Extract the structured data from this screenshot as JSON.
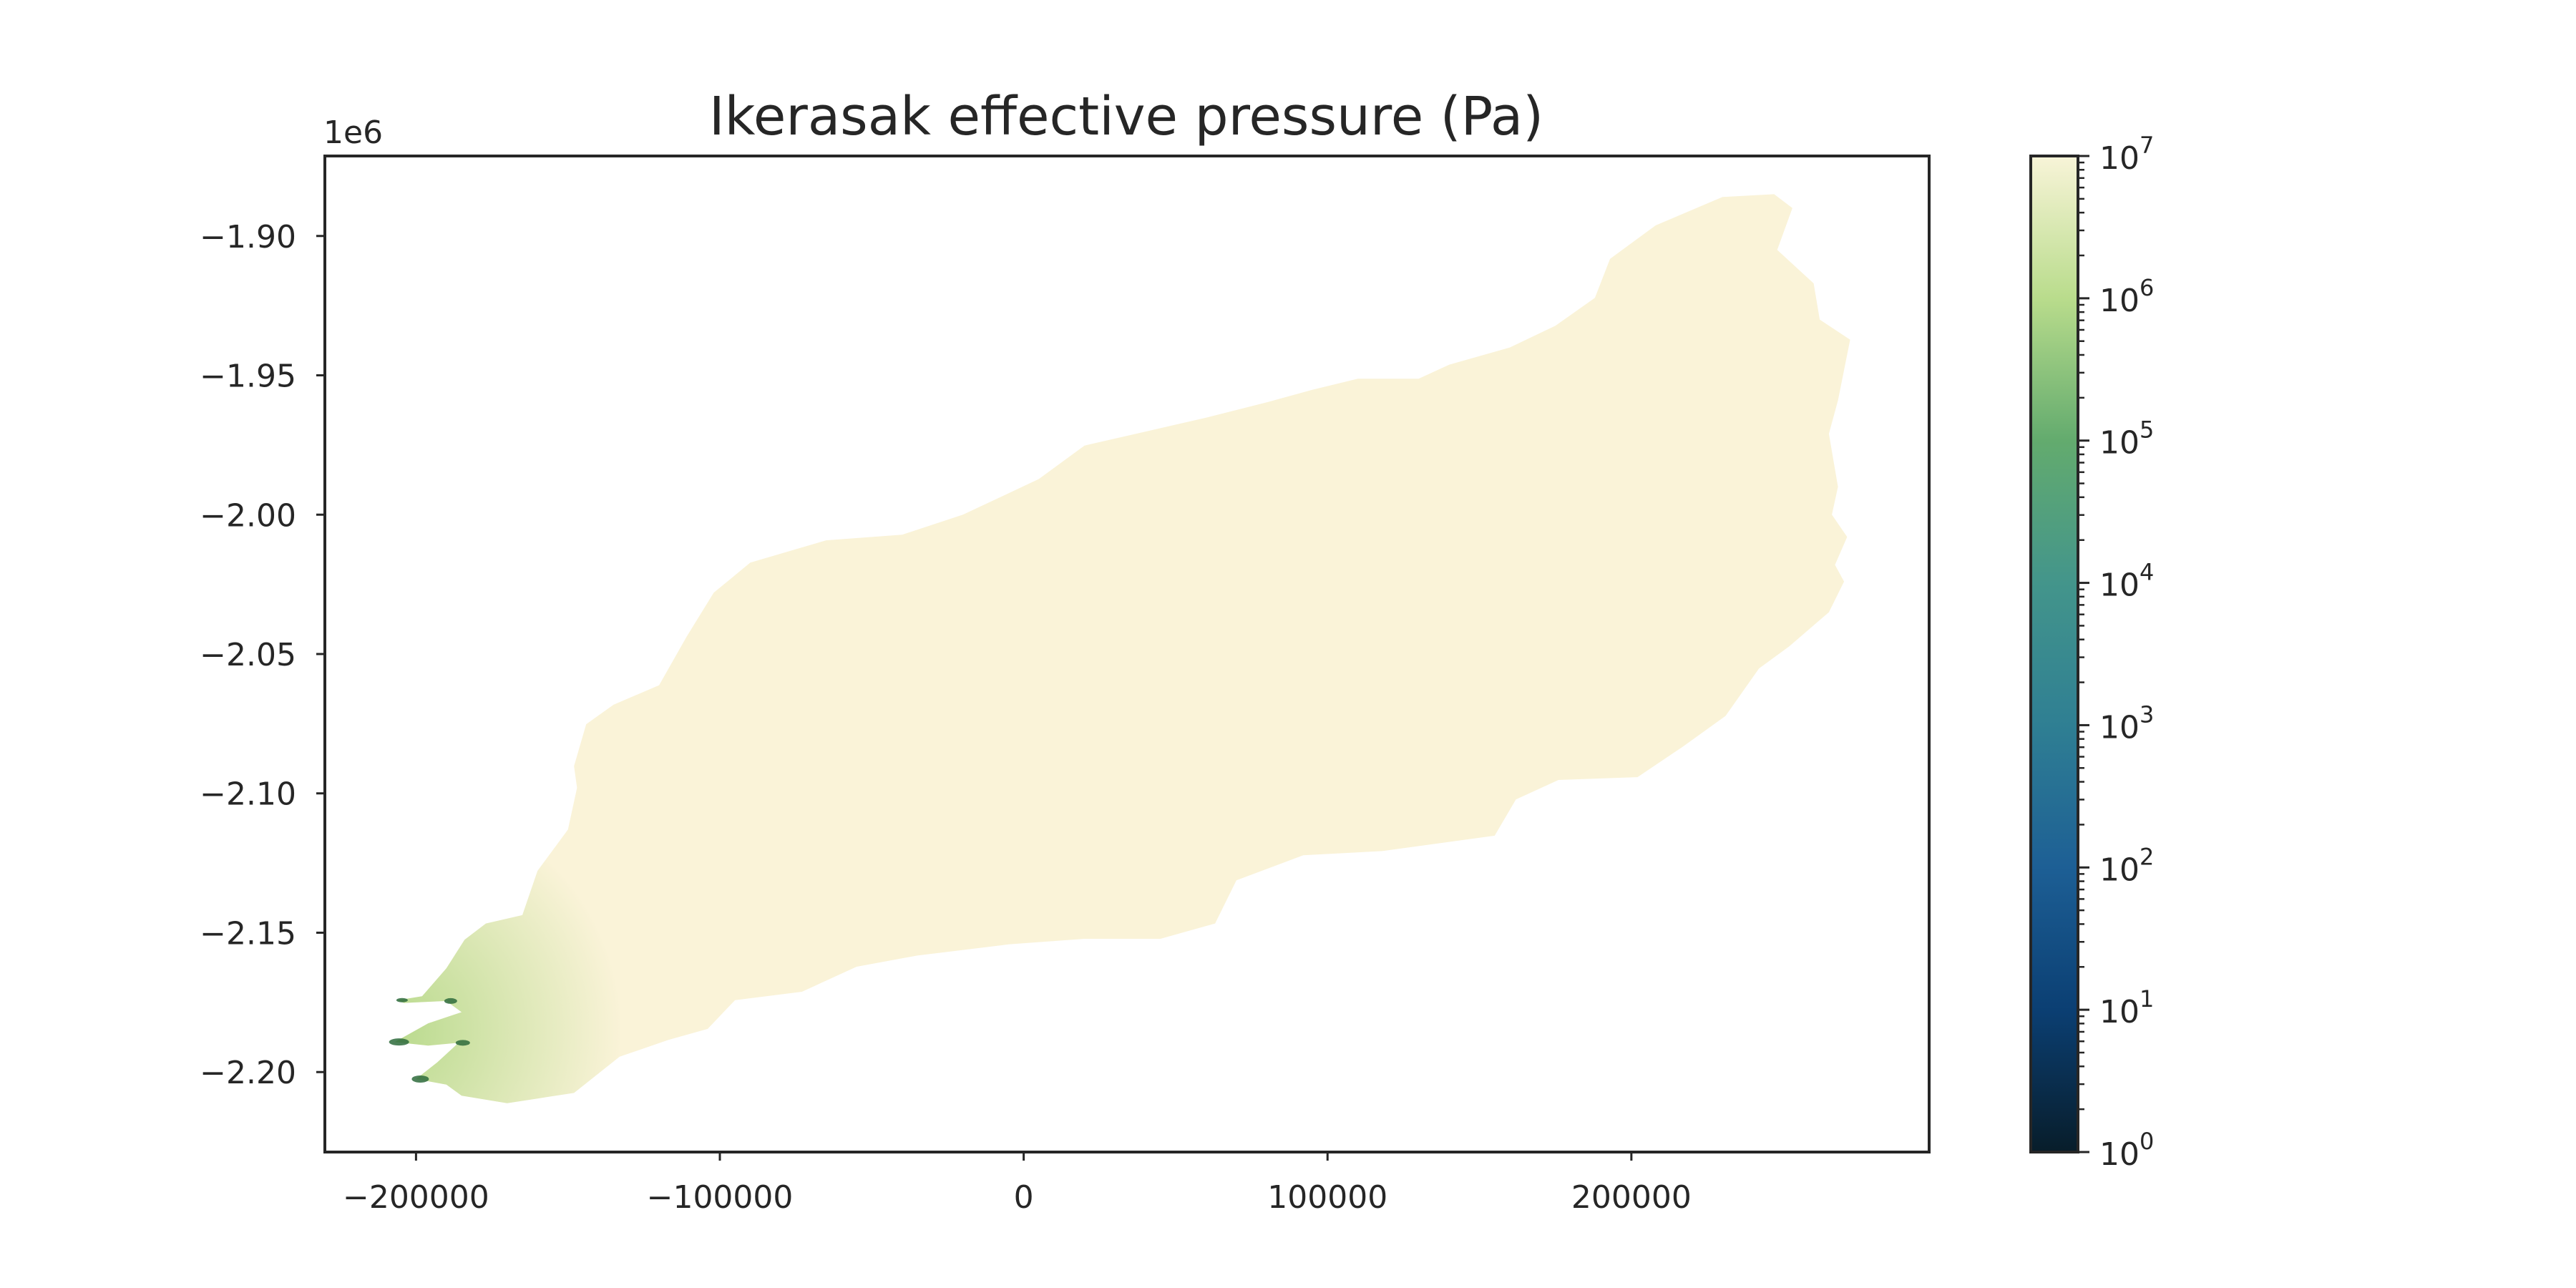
{
  "chart_data": {
    "type": "heatmap",
    "title": "Ikerasak effective pressure (Pa)",
    "xlabel": "",
    "ylabel": "",
    "y_offset_label": "1e6",
    "xlim": [
      -230000,
      298000
    ],
    "ylim": [
      -2.2287,
      -1.8713
    ],
    "x_ticks": [
      {
        "value": -200000,
        "label": "−200000"
      },
      {
        "value": -100000,
        "label": "−100000"
      },
      {
        "value": 0,
        "label": "0"
      },
      {
        "value": 100000,
        "label": "100000"
      },
      {
        "value": 200000,
        "label": "200000"
      }
    ],
    "y_ticks": [
      {
        "value": -1.9,
        "label": "−1.90"
      },
      {
        "value": -1.95,
        "label": "−1.95"
      },
      {
        "value": -2.0,
        "label": "−2.00"
      },
      {
        "value": -2.05,
        "label": "−2.05"
      },
      {
        "value": -2.1,
        "label": "−2.10"
      },
      {
        "value": -2.15,
        "label": "−2.15"
      },
      {
        "value": -2.2,
        "label": "−2.20"
      }
    ],
    "grid": false,
    "colorbar": {
      "scale": "log",
      "colormap": "YlGnBu_r",
      "range": [
        1,
        10000000
      ],
      "ticks": [
        {
          "exp": 0,
          "label": "10",
          "sup": "0"
        },
        {
          "exp": 1,
          "label": "10",
          "sup": "1"
        },
        {
          "exp": 2,
          "label": "10",
          "sup": "2"
        },
        {
          "exp": 3,
          "label": "10",
          "sup": "3"
        },
        {
          "exp": 4,
          "label": "10",
          "sup": "4"
        },
        {
          "exp": 5,
          "label": "10",
          "sup": "5"
        },
        {
          "exp": 6,
          "label": "10",
          "sup": "6"
        },
        {
          "exp": 7,
          "label": "10",
          "sup": "7"
        }
      ],
      "stops": [
        {
          "exp": 0,
          "color": "#081d2a"
        },
        {
          "exp": 1,
          "color": "#0b3f73"
        },
        {
          "exp": 2,
          "color": "#1d5f95"
        },
        {
          "exp": 3,
          "color": "#2f7f93"
        },
        {
          "exp": 4,
          "color": "#43958b"
        },
        {
          "exp": 5,
          "color": "#63ab6e"
        },
        {
          "exp": 6,
          "color": "#b9dc8c"
        },
        {
          "exp": 7,
          "color": "#f8f4d8"
        }
      ]
    },
    "field": {
      "interior_value": 10000000,
      "interior_color": "#faf3d8",
      "terminus_low_value": 300000,
      "terminus_color": "#b6d98a",
      "terminus_edge_color": "#2e6b3c",
      "outline": [
        [
          -198000,
          -2.1728
        ],
        [
          -190000,
          -2.1628
        ],
        [
          -184000,
          -2.1525
        ],
        [
          -177000,
          -2.1467
        ],
        [
          -165000,
          -2.1437
        ],
        [
          -160000,
          -2.1278
        ],
        [
          -150000,
          -2.113
        ],
        [
          -147000,
          -2.098
        ],
        [
          -148000,
          -2.0902
        ],
        [
          -144000,
          -2.0752
        ],
        [
          -135000,
          -2.0682
        ],
        [
          -120000,
          -2.0612
        ],
        [
          -111000,
          -2.0439
        ],
        [
          -102000,
          -2.028
        ],
        [
          -90000,
          -2.0172
        ],
        [
          -65000,
          -2.0092
        ],
        [
          -40000,
          -2.0072
        ],
        [
          -20000,
          -2.0
        ],
        [
          5000,
          -1.9872
        ],
        [
          20000,
          -1.9752
        ],
        [
          40000,
          -1.9702
        ],
        [
          60000,
          -1.9652
        ],
        [
          80000,
          -1.9597
        ],
        [
          95000,
          -1.9552
        ],
        [
          110000,
          -1.9512
        ],
        [
          130000,
          -1.9512
        ],
        [
          140000,
          -1.9462
        ],
        [
          160000,
          -1.94
        ],
        [
          175000,
          -1.9322
        ],
        [
          188000,
          -1.9222
        ],
        [
          193000,
          -1.9082
        ],
        [
          208000,
          -1.8962
        ],
        [
          230000,
          -1.886
        ],
        [
          247000,
          -1.885
        ],
        [
          253000,
          -1.89
        ],
        [
          248000,
          -1.905
        ],
        [
          260000,
          -1.917
        ],
        [
          262000,
          -1.93
        ],
        [
          272000,
          -1.9372
        ],
        [
          268000,
          -1.959
        ],
        [
          265000,
          -1.971
        ],
        [
          268000,
          -1.99
        ],
        [
          266000,
          -2.0
        ],
        [
          271000,
          -2.008
        ],
        [
          267000,
          -2.018
        ],
        [
          270000,
          -2.024
        ],
        [
          265000,
          -2.035
        ],
        [
          252000,
          -2.0472
        ],
        [
          242000,
          -2.0552
        ],
        [
          231000,
          -2.0722
        ],
        [
          217000,
          -2.0832
        ],
        [
          202000,
          -2.0942
        ],
        [
          176000,
          -2.0952
        ],
        [
          162000,
          -2.1022
        ],
        [
          155000,
          -2.1152
        ],
        [
          118000,
          -2.1207
        ],
        [
          92000,
          -2.1222
        ],
        [
          70000,
          -2.1312
        ],
        [
          63000,
          -2.1467
        ],
        [
          45000,
          -2.1522
        ],
        [
          20000,
          -2.1522
        ],
        [
          -5000,
          -2.1542
        ],
        [
          -35000,
          -2.1582
        ],
        [
          -55000,
          -2.1622
        ],
        [
          -73000,
          -2.1712
        ],
        [
          -95000,
          -2.1742
        ],
        [
          -104000,
          -2.1845
        ],
        [
          -117000,
          -2.1885
        ],
        [
          -133000,
          -2.1945
        ],
        [
          -148000,
          -2.2075
        ],
        [
          -160000,
          -2.2095
        ],
        [
          -170000,
          -2.2112
        ],
        [
          -185000,
          -2.2085
        ],
        [
          -190000,
          -2.2045
        ],
        [
          -200000,
          -2.2025
        ],
        [
          -193000,
          -2.1965
        ],
        [
          -186000,
          -2.1895
        ],
        [
          -196000,
          -2.1905
        ],
        [
          -207000,
          -2.1892
        ],
        [
          -196000,
          -2.1825
        ],
        [
          -185000,
          -2.1785
        ],
        [
          -190000,
          -2.1745
        ],
        [
          -204000,
          -2.1752
        ],
        [
          -206000,
          -2.1742
        ],
        [
          -198000,
          -2.1728
        ]
      ]
    }
  }
}
